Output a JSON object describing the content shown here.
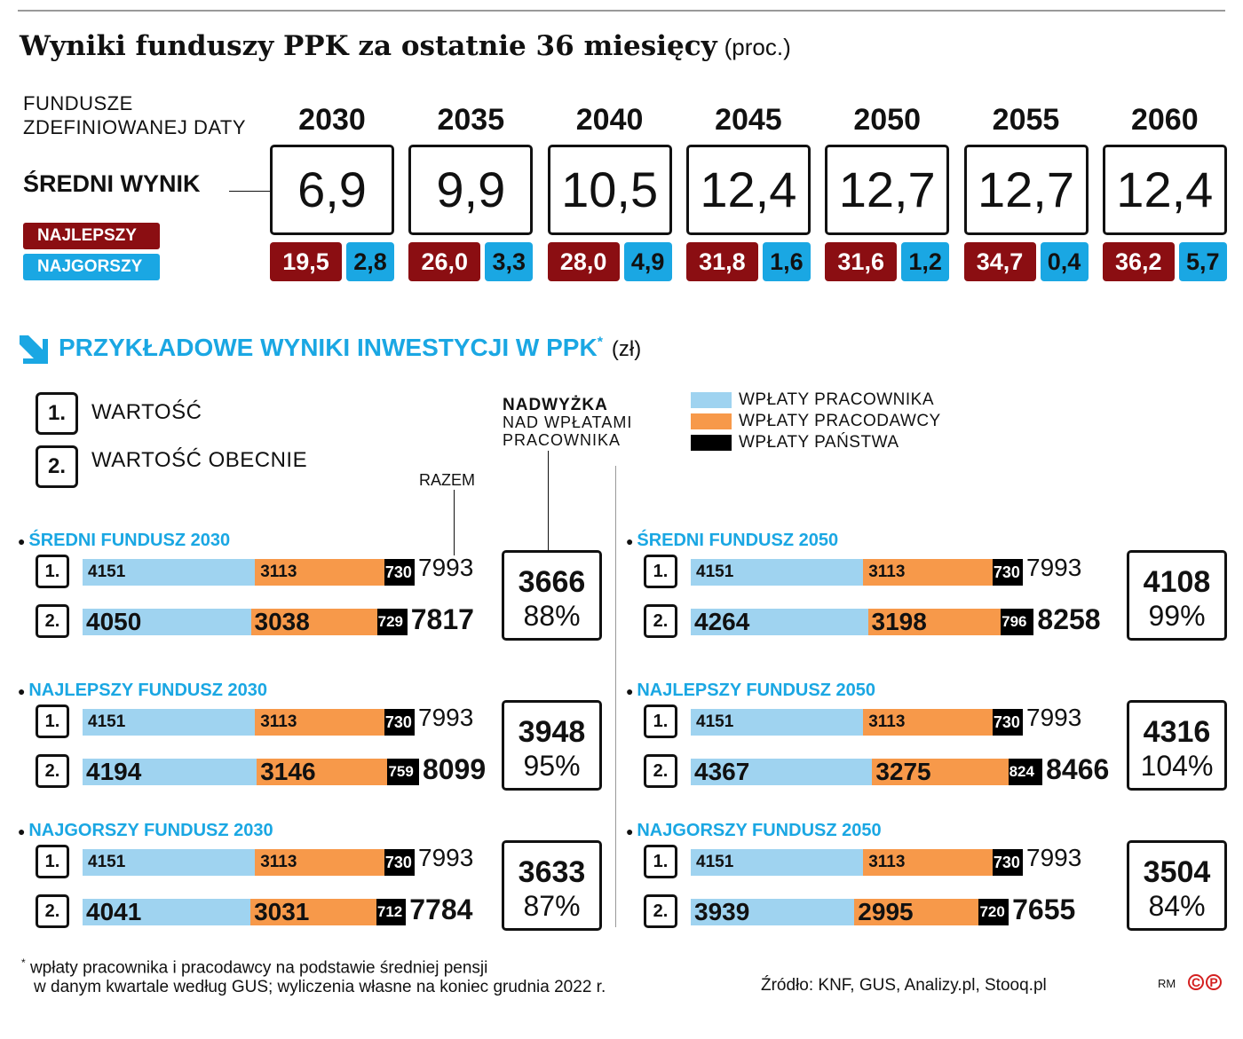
{
  "title": "Wyniki funduszy PPK za ostatnie 36 miesięcy",
  "title_unit": "(proc.)",
  "top": {
    "funds_label": "FUNDUSZE ZDEFINIOWANEJ DATY",
    "avg_label": "ŚREDNI WYNIK",
    "best_label": "NAJLEPSZY",
    "worst_label": "NAJGORSZY",
    "columns": [
      {
        "year": "2030",
        "avg": "6,9",
        "best": "19,5",
        "worst": "2,8"
      },
      {
        "year": "2035",
        "avg": "9,9",
        "best": "26,0",
        "worst": "3,3"
      },
      {
        "year": "2040",
        "avg": "10,5",
        "best": "28,0",
        "worst": "4,9"
      },
      {
        "year": "2045",
        "avg": "12,4",
        "best": "31,8",
        "worst": "1,6"
      },
      {
        "year": "2050",
        "avg": "12,7",
        "best": "31,6",
        "worst": "1,2"
      },
      {
        "year": "2055",
        "avg": "12,7",
        "best": "34,7",
        "worst": "0,4"
      },
      {
        "year": "2060",
        "avg": "12,4",
        "best": "36,2",
        "worst": "5,7"
      }
    ]
  },
  "section": {
    "title": "PRZYKŁADOWE WYNIKI INWESTYCJI W PPK",
    "asterisk": "*",
    "unit": "(zł)"
  },
  "legend": {
    "row1_num": "1.",
    "row1": "WARTOŚĆ",
    "row2_num": "2.",
    "row2": "WARTOŚĆ OBECNIE",
    "surplus": "NADWYŻKA",
    "surplus_sub": "NAD WPŁATAMI PRACOWNIKA",
    "total": "RAZEM"
  },
  "colors": {
    "employee": "#9fd3f0",
    "employer": "#f7994a",
    "state": "#000000",
    "accent": "#1aa7e3",
    "best": "#8b0e12"
  },
  "chart_data": {
    "type": "bar",
    "stacked": true,
    "orientation": "horizontal",
    "series_names": [
      "WPŁATY PRACOWNIKA",
      "WPŁATY PRACODAWCY",
      "WPŁATY PAŃSTWA"
    ],
    "groups": [
      {
        "label": "ŚREDNI FUNDUSZ 2030",
        "rows": [
          {
            "values": [
              4151,
              3113,
              730
            ],
            "total": 7993
          },
          {
            "values": [
              4050,
              3038,
              729
            ],
            "total": 7817
          }
        ],
        "surplus": "3666",
        "surplus_pct": "88%"
      },
      {
        "label": "NAJLEPSZY FUNDUSZ 2030",
        "rows": [
          {
            "values": [
              4151,
              3113,
              730
            ],
            "total": 7993
          },
          {
            "values": [
              4194,
              3146,
              759
            ],
            "total": 8099
          }
        ],
        "surplus": "3948",
        "surplus_pct": "95%"
      },
      {
        "label": "NAJGORSZY FUNDUSZ 2030",
        "rows": [
          {
            "values": [
              4151,
              3113,
              730
            ],
            "total": 7993
          },
          {
            "values": [
              4041,
              3031,
              712
            ],
            "total": 7784
          }
        ],
        "surplus": "3633",
        "surplus_pct": "87%"
      },
      {
        "label": "ŚREDNI FUNDUSZ 2050",
        "rows": [
          {
            "values": [
              4151,
              3113,
              730
            ],
            "total": 7993
          },
          {
            "values": [
              4264,
              3198,
              796
            ],
            "total": 8258
          }
        ],
        "surplus": "4108",
        "surplus_pct": "99%"
      },
      {
        "label": "NAJLEPSZY FUNDUSZ 2050",
        "rows": [
          {
            "values": [
              4151,
              3113,
              730
            ],
            "total": 7993
          },
          {
            "values": [
              4367,
              3275,
              824
            ],
            "total": 8466
          }
        ],
        "surplus": "4316",
        "surplus_pct": "104%"
      },
      {
        "label": "NAJGORSZY FUNDUSZ 2050",
        "rows": [
          {
            "values": [
              4151,
              3113,
              730
            ],
            "total": 7993
          },
          {
            "values": [
              3939,
              2995,
              720
            ],
            "total": 7655
          }
        ],
        "surplus": "3504",
        "surplus_pct": "84%"
      }
    ]
  },
  "footnote": {
    "line1": "wpłaty pracownika i pracodawcy na podstawie średniej pensji",
    "line2": "w danym kwartale według GUS; wyliczenia własne na koniec grudnia 2022 r.",
    "mark": "*"
  },
  "source": "Źródło: KNF, GUS, Analizy.pl, Stooq.pl",
  "credit": "RM"
}
